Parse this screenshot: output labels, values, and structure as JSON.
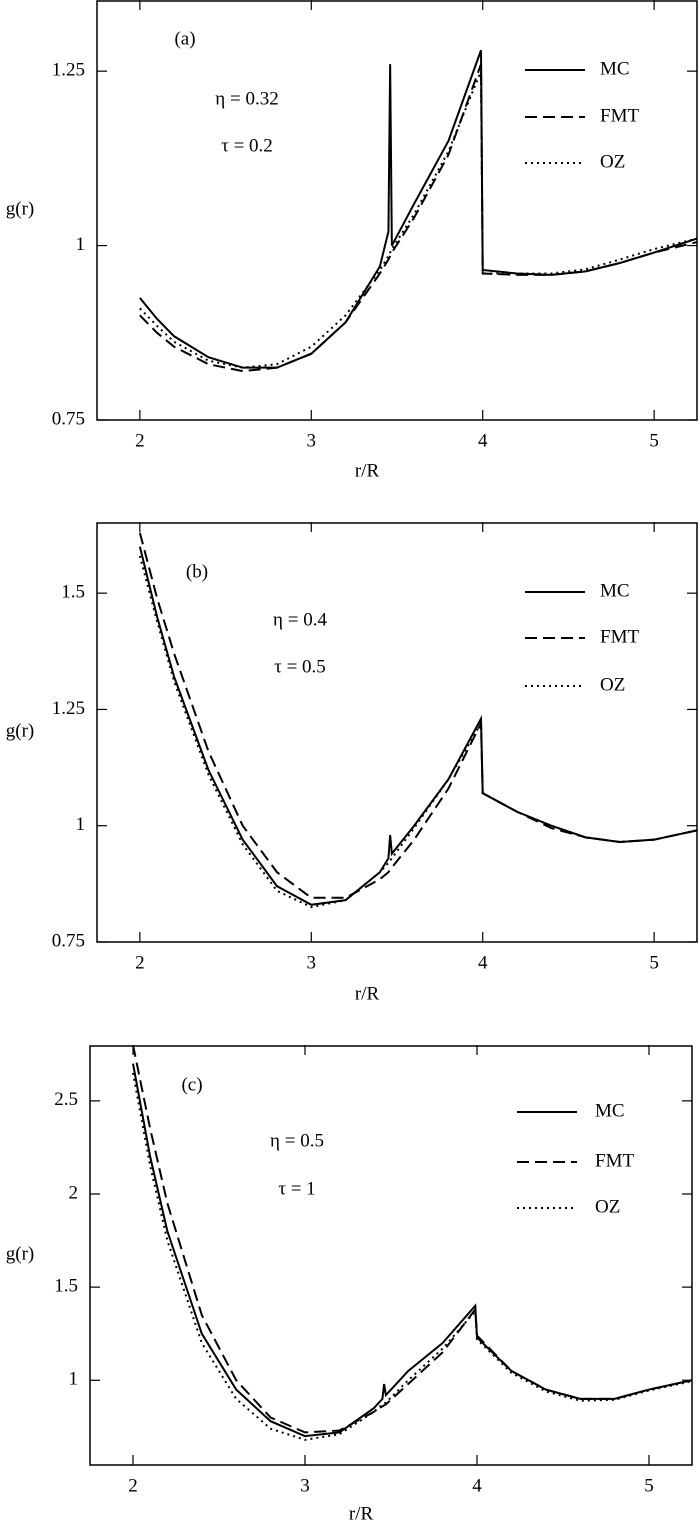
{
  "chart_data": [
    {
      "type": "line",
      "xlabel": "r/R",
      "ylabel": "g(r)",
      "annotations": [
        "(a)",
        "η = 0.32",
        "τ = 0.2"
      ],
      "legend": "upper right",
      "xlim": [
        1.75,
        5.25
      ],
      "ylim": [
        0.75,
        1.352
      ],
      "xticks": [
        2,
        3,
        4,
        5
      ],
      "yticks": [
        0.75,
        1,
        1.25
      ],
      "x": [
        2,
        2.1,
        2.2,
        2.4,
        2.6,
        2.8,
        3.0,
        3.2,
        3.4,
        3.45,
        3.46,
        3.47,
        3.6,
        3.8,
        3.99,
        4.0,
        4.2,
        4.4,
        4.6,
        4.8,
        5.0,
        5.25
      ],
      "series": [
        {
          "name": "MC",
          "color": "#000000",
          "dash": "solid",
          "values": [
            0.925,
            0.895,
            0.87,
            0.84,
            0.825,
            0.825,
            0.845,
            0.89,
            0.97,
            1.02,
            1.26,
            1.0,
            1.06,
            1.15,
            1.28,
            0.965,
            0.96,
            0.958,
            0.963,
            0.975,
            0.99,
            1.01
          ]
        },
        {
          "name": "FMT",
          "color": "#000000",
          "dash": "dashed",
          "values": [
            0.9,
            0.875,
            0.855,
            0.83,
            0.82,
            0.825,
            0.845,
            0.89,
            0.96,
            0.98,
            0.985,
            0.99,
            1.04,
            1.13,
            1.26,
            0.96,
            0.958,
            0.958,
            0.963,
            0.975,
            0.99,
            1.005
          ]
        },
        {
          "name": "OZ",
          "color": "#000000",
          "dash": "dotted",
          "values": [
            0.91,
            0.885,
            0.862,
            0.835,
            0.825,
            0.83,
            0.855,
            0.9,
            0.965,
            0.985,
            0.99,
            0.995,
            1.045,
            1.135,
            1.25,
            0.96,
            0.96,
            0.96,
            0.966,
            0.98,
            0.995,
            1.01
          ]
        }
      ]
    },
    {
      "type": "line",
      "xlabel": "r/R",
      "ylabel": "g(r)",
      "annotations": [
        "(b)",
        "η = 0.4",
        "τ = 0.5"
      ],
      "legend": "upper right",
      "xlim": [
        1.75,
        5.25
      ],
      "ylim": [
        0.75,
        1.653
      ],
      "xticks": [
        2,
        3,
        4,
        5
      ],
      "yticks": [
        0.75,
        1,
        1.25,
        1.5
      ],
      "x": [
        2,
        2.1,
        2.2,
        2.4,
        2.6,
        2.8,
        3.0,
        3.2,
        3.4,
        3.45,
        3.46,
        3.47,
        3.6,
        3.8,
        3.99,
        4.0,
        4.2,
        4.4,
        4.6,
        4.8,
        5.0,
        5.25
      ],
      "series": [
        {
          "name": "MC",
          "color": "#000000",
          "dash": "solid",
          "values": [
            1.6,
            1.45,
            1.32,
            1.12,
            0.97,
            0.87,
            0.83,
            0.84,
            0.9,
            0.93,
            0.98,
            0.94,
            1.0,
            1.1,
            1.23,
            1.07,
            1.03,
            1.0,
            0.975,
            0.965,
            0.97,
            0.99
          ]
        },
        {
          "name": "FMT",
          "color": "#000000",
          "dash": "dashed",
          "values": [
            1.63,
            1.49,
            1.37,
            1.16,
            1.0,
            0.9,
            0.845,
            0.845,
            0.885,
            0.9,
            0.905,
            0.91,
            0.97,
            1.08,
            1.22,
            1.07,
            1.03,
            0.995,
            0.975,
            0.965,
            0.97,
            0.99
          ]
        },
        {
          "name": "OZ",
          "color": "#000000",
          "dash": "dotted",
          "values": [
            1.58,
            1.44,
            1.31,
            1.11,
            0.96,
            0.86,
            0.825,
            0.84,
            0.9,
            0.92,
            0.925,
            0.93,
            0.995,
            1.1,
            1.22,
            1.07,
            1.03,
            1.0,
            0.975,
            0.965,
            0.97,
            0.99
          ]
        }
      ]
    },
    {
      "type": "line",
      "xlabel": "r/R",
      "ylabel": "g(r)",
      "annotations": [
        "(c)",
        "η = 0.5",
        "τ = 1"
      ],
      "legend": "upper right",
      "xlim": [
        1.75,
        5.25
      ],
      "ylim": [
        0.545,
        2.8
      ],
      "xticks": [
        2,
        3,
        4,
        5
      ],
      "yticks": [
        1,
        1.5,
        2,
        2.5
      ],
      "x": [
        2,
        2.1,
        2.2,
        2.4,
        2.6,
        2.8,
        3.0,
        3.2,
        3.4,
        3.45,
        3.46,
        3.47,
        3.6,
        3.8,
        3.99,
        4.0,
        4.2,
        4.4,
        4.6,
        4.8,
        5.0,
        5.25
      ],
      "series": [
        {
          "name": "MC",
          "color": "#000000",
          "dash": "solid",
          "values": [
            2.7,
            2.2,
            1.8,
            1.25,
            0.95,
            0.78,
            0.7,
            0.72,
            0.85,
            0.9,
            0.98,
            0.92,
            1.05,
            1.2,
            1.4,
            1.23,
            1.05,
            0.95,
            0.9,
            0.9,
            0.95,
            1.0
          ]
        },
        {
          "name": "FMT",
          "color": "#000000",
          "dash": "dashed",
          "values": [
            2.8,
            2.35,
            1.95,
            1.35,
            1.0,
            0.8,
            0.72,
            0.73,
            0.83,
            0.86,
            0.865,
            0.87,
            0.98,
            1.15,
            1.38,
            1.24,
            1.05,
            0.95,
            0.9,
            0.9,
            0.95,
            1.0
          ]
        },
        {
          "name": "OZ",
          "color": "#000000",
          "dash": "dotted",
          "values": [
            2.65,
            2.15,
            1.75,
            1.2,
            0.9,
            0.74,
            0.68,
            0.71,
            0.83,
            0.87,
            0.875,
            0.88,
            1.0,
            1.17,
            1.37,
            1.22,
            1.04,
            0.94,
            0.89,
            0.895,
            0.945,
            0.995
          ]
        }
      ]
    }
  ]
}
